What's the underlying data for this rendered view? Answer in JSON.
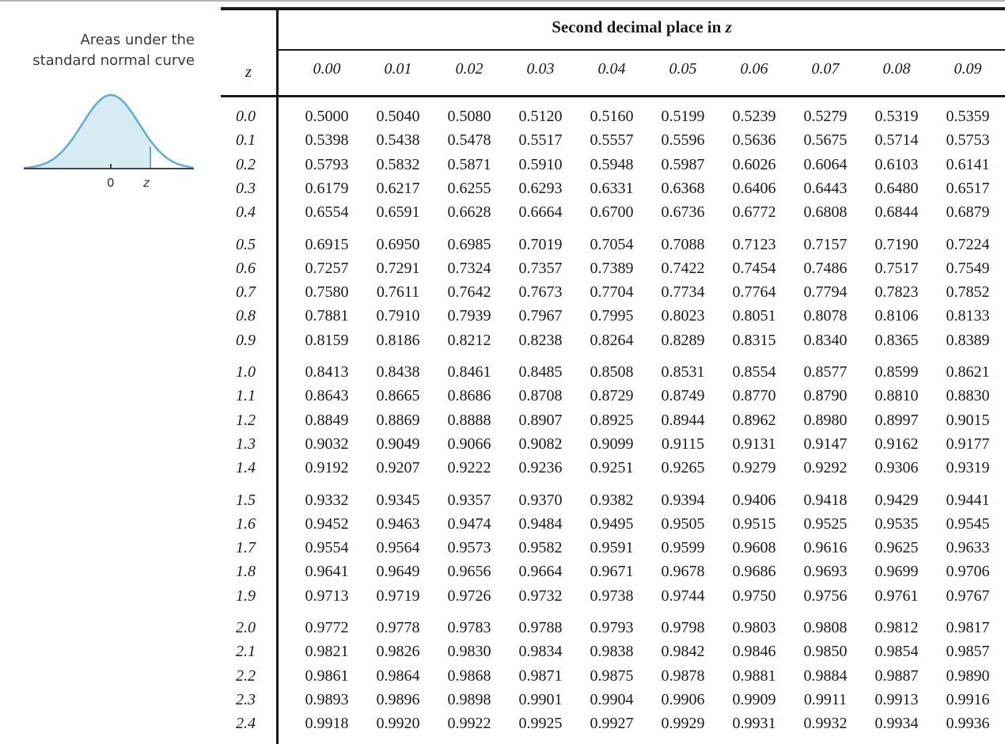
{
  "figure": {
    "caption_line1": "Areas under the",
    "caption_line2": "standard normal curve",
    "tick_zero": "0",
    "tick_z": "z"
  },
  "table": {
    "group_title": "Second decimal place in",
    "group_title_var": "z",
    "z_header": "z",
    "columns": [
      "0.00",
      "0.01",
      "0.02",
      "0.03",
      "0.04",
      "0.05",
      "0.06",
      "0.07",
      "0.08",
      "0.09"
    ],
    "rows": [
      {
        "z": "0.0",
        "values": [
          "0.5000",
          "0.5040",
          "0.5080",
          "0.5120",
          "0.5160",
          "0.5199",
          "0.5239",
          "0.5279",
          "0.5319",
          "0.5359"
        ]
      },
      {
        "z": "0.1",
        "values": [
          "0.5398",
          "0.5438",
          "0.5478",
          "0.5517",
          "0.5557",
          "0.5596",
          "0.5636",
          "0.5675",
          "0.5714",
          "0.5753"
        ]
      },
      {
        "z": "0.2",
        "values": [
          "0.5793",
          "0.5832",
          "0.5871",
          "0.5910",
          "0.5948",
          "0.5987",
          "0.6026",
          "0.6064",
          "0.6103",
          "0.6141"
        ]
      },
      {
        "z": "0.3",
        "values": [
          "0.6179",
          "0.6217",
          "0.6255",
          "0.6293",
          "0.6331",
          "0.6368",
          "0.6406",
          "0.6443",
          "0.6480",
          "0.6517"
        ]
      },
      {
        "z": "0.4",
        "values": [
          "0.6554",
          "0.6591",
          "0.6628",
          "0.6664",
          "0.6700",
          "0.6736",
          "0.6772",
          "0.6808",
          "0.6844",
          "0.6879"
        ]
      },
      {
        "z": "0.5",
        "values": [
          "0.6915",
          "0.6950",
          "0.6985",
          "0.7019",
          "0.7054",
          "0.7088",
          "0.7123",
          "0.7157",
          "0.7190",
          "0.7224"
        ]
      },
      {
        "z": "0.6",
        "values": [
          "0.7257",
          "0.7291",
          "0.7324",
          "0.7357",
          "0.7389",
          "0.7422",
          "0.7454",
          "0.7486",
          "0.7517",
          "0.7549"
        ]
      },
      {
        "z": "0.7",
        "values": [
          "0.7580",
          "0.7611",
          "0.7642",
          "0.7673",
          "0.7704",
          "0.7734",
          "0.7764",
          "0.7794",
          "0.7823",
          "0.7852"
        ]
      },
      {
        "z": "0.8",
        "values": [
          "0.7881",
          "0.7910",
          "0.7939",
          "0.7967",
          "0.7995",
          "0.8023",
          "0.8051",
          "0.8078",
          "0.8106",
          "0.8133"
        ]
      },
      {
        "z": "0.9",
        "values": [
          "0.8159",
          "0.8186",
          "0.8212",
          "0.8238",
          "0.8264",
          "0.8289",
          "0.8315",
          "0.8340",
          "0.8365",
          "0.8389"
        ]
      },
      {
        "z": "1.0",
        "values": [
          "0.8413",
          "0.8438",
          "0.8461",
          "0.8485",
          "0.8508",
          "0.8531",
          "0.8554",
          "0.8577",
          "0.8599",
          "0.8621"
        ]
      },
      {
        "z": "1.1",
        "values": [
          "0.8643",
          "0.8665",
          "0.8686",
          "0.8708",
          "0.8729",
          "0.8749",
          "0.8770",
          "0.8790",
          "0.8810",
          "0.8830"
        ]
      },
      {
        "z": "1.2",
        "values": [
          "0.8849",
          "0.8869",
          "0.8888",
          "0.8907",
          "0.8925",
          "0.8944",
          "0.8962",
          "0.8980",
          "0.8997",
          "0.9015"
        ]
      },
      {
        "z": "1.3",
        "values": [
          "0.9032",
          "0.9049",
          "0.9066",
          "0.9082",
          "0.9099",
          "0.9115",
          "0.9131",
          "0.9147",
          "0.9162",
          "0.9177"
        ]
      },
      {
        "z": "1.4",
        "values": [
          "0.9192",
          "0.9207",
          "0.9222",
          "0.9236",
          "0.9251",
          "0.9265",
          "0.9279",
          "0.9292",
          "0.9306",
          "0.9319"
        ]
      },
      {
        "z": "1.5",
        "values": [
          "0.9332",
          "0.9345",
          "0.9357",
          "0.9370",
          "0.9382",
          "0.9394",
          "0.9406",
          "0.9418",
          "0.9429",
          "0.9441"
        ]
      },
      {
        "z": "1.6",
        "values": [
          "0.9452",
          "0.9463",
          "0.9474",
          "0.9484",
          "0.9495",
          "0.9505",
          "0.9515",
          "0.9525",
          "0.9535",
          "0.9545"
        ]
      },
      {
        "z": "1.7",
        "values": [
          "0.9554",
          "0.9564",
          "0.9573",
          "0.9582",
          "0.9591",
          "0.9599",
          "0.9608",
          "0.9616",
          "0.9625",
          "0.9633"
        ]
      },
      {
        "z": "1.8",
        "values": [
          "0.9641",
          "0.9649",
          "0.9656",
          "0.9664",
          "0.9671",
          "0.9678",
          "0.9686",
          "0.9693",
          "0.9699",
          "0.9706"
        ]
      },
      {
        "z": "1.9",
        "values": [
          "0.9713",
          "0.9719",
          "0.9726",
          "0.9732",
          "0.9738",
          "0.9744",
          "0.9750",
          "0.9756",
          "0.9761",
          "0.9767"
        ]
      },
      {
        "z": "2.0",
        "values": [
          "0.9772",
          "0.9778",
          "0.9783",
          "0.9788",
          "0.9793",
          "0.9798",
          "0.9803",
          "0.9808",
          "0.9812",
          "0.9817"
        ]
      },
      {
        "z": "2.1",
        "values": [
          "0.9821",
          "0.9826",
          "0.9830",
          "0.9834",
          "0.9838",
          "0.9842",
          "0.9846",
          "0.9850",
          "0.9854",
          "0.9857"
        ]
      },
      {
        "z": "2.2",
        "values": [
          "0.9861",
          "0.9864",
          "0.9868",
          "0.9871",
          "0.9875",
          "0.9878",
          "0.9881",
          "0.9884",
          "0.9887",
          "0.9890"
        ]
      },
      {
        "z": "2.3",
        "values": [
          "0.9893",
          "0.9896",
          "0.9898",
          "0.9901",
          "0.9904",
          "0.9906",
          "0.9909",
          "0.9911",
          "0.9913",
          "0.9916"
        ]
      },
      {
        "z": "2.4",
        "values": [
          "0.9918",
          "0.9920",
          "0.9922",
          "0.9925",
          "0.9927",
          "0.9929",
          "0.9931",
          "0.9932",
          "0.9934",
          "0.9936"
        ]
      }
    ]
  },
  "colors": {
    "curve": "#5aaee0",
    "area_fill": "#d6ebf2",
    "rule": "#1a1a1a"
  }
}
